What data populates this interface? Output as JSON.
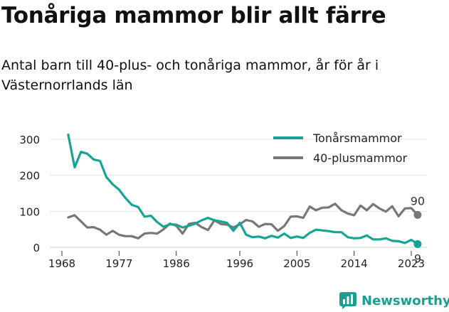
{
  "title": "Tonåriga mammor blir allt färre",
  "subtitle": "Antal barn till 40-plus- och tonåriga mammor, år för år i Västernorrlands län",
  "brand": {
    "name": "Newsworthy",
    "icon": "newsworthy-logo-icon"
  },
  "colors": {
    "teen": "#16a595",
    "forty": "#777779",
    "grid": "#e6e6e6",
    "text": "#222222"
  },
  "chart_data": {
    "type": "line",
    "xlim": [
      1968,
      2023
    ],
    "ylim": [
      0,
      320
    ],
    "x_ticks": [
      1968,
      1977,
      1986,
      1996,
      2005,
      2014,
      2023
    ],
    "y_ticks": [
      0,
      100,
      200,
      300
    ],
    "legend_position": "top-right",
    "grid": "horizontal",
    "series": [
      {
        "name": "Tonårsmammor",
        "end_label": "9",
        "x": [
          1969,
          1970,
          1971,
          1972,
          1973,
          1974,
          1975,
          1976,
          1977,
          1978,
          1979,
          1980,
          1981,
          1982,
          1983,
          1984,
          1985,
          1986,
          1987,
          1988,
          1989,
          1990,
          1991,
          1992,
          1993,
          1994,
          1995,
          1996,
          1997,
          1998,
          1999,
          2000,
          2001,
          2002,
          2003,
          2004,
          2005,
          2006,
          2007,
          2008,
          2009,
          2010,
          2011,
          2012,
          2013,
          2014,
          2015,
          2016,
          2017,
          2018,
          2019,
          2020,
          2021,
          2022,
          2023,
          2024
        ],
        "values": [
          313,
          222,
          265,
          260,
          244,
          240,
          195,
          175,
          160,
          137,
          118,
          112,
          85,
          88,
          70,
          57,
          64,
          63,
          55,
          60,
          66,
          75,
          82,
          75,
          72,
          68,
          46,
          68,
          35,
          28,
          30,
          25,
          32,
          27,
          38,
          26,
          30,
          26,
          40,
          49,
          47,
          45,
          42,
          42,
          28,
          25,
          26,
          33,
          22,
          22,
          25,
          18,
          17,
          12,
          21,
          9
        ]
      },
      {
        "name": "40-plusmammor",
        "end_label": "90",
        "x": [
          1969,
          1970,
          1971,
          1972,
          1973,
          1974,
          1975,
          1976,
          1977,
          1978,
          1979,
          1980,
          1981,
          1982,
          1983,
          1984,
          1985,
          1986,
          1987,
          1988,
          1989,
          1990,
          1991,
          1992,
          1993,
          1994,
          1995,
          1996,
          1997,
          1998,
          1999,
          2000,
          2001,
          2002,
          2003,
          2004,
          2005,
          2006,
          2007,
          2008,
          2009,
          2010,
          2011,
          2012,
          2013,
          2014,
          2015,
          2016,
          2017,
          2018,
          2019,
          2020,
          2021,
          2022,
          2023,
          2024
        ],
        "values": [
          83,
          89,
          72,
          55,
          56,
          49,
          35,
          46,
          35,
          31,
          31,
          25,
          38,
          40,
          38,
          50,
          66,
          60,
          38,
          65,
          68,
          56,
          48,
          75,
          65,
          63,
          55,
          64,
          76,
          72,
          57,
          65,
          64,
          46,
          59,
          85,
          86,
          82,
          113,
          103,
          110,
          111,
          121,
          103,
          94,
          89,
          116,
          103,
          120,
          108,
          99,
          114,
          86,
          108,
          109,
          90
        ]
      }
    ]
  }
}
